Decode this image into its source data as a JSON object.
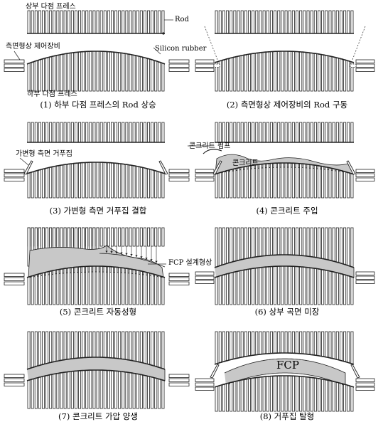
{
  "panels": [
    {
      "caption": "(1) 하부 다점 프레스의 Rod 상승"
    },
    {
      "caption": "(2) 측면형상 제어장비의 Rod 구동"
    },
    {
      "caption": "(3) 가변형 측면 거푸집 결합"
    },
    {
      "caption": "(4) 콘크리트 주입"
    },
    {
      "caption": "(5) 콘크리트 자동성형"
    },
    {
      "caption": "(6) 상부 곡면 미장"
    },
    {
      "caption": "(7) 콘크리트 가압 양생"
    },
    {
      "caption": "(8) 거푸집 탈형"
    }
  ],
  "annotations": {
    "upper_press": "상부 다점 프레스",
    "rod": "Rod",
    "side_control": "측면형상 제어장비",
    "silicon_rubber": "Silicon rubber",
    "lower_press": "하부 다점 프레스",
    "side_form": "가변형 측면 거푸집",
    "pump": "콘크리트 펌프",
    "concrete": "콘크리트",
    "fcp_design": "FCP 설계형상",
    "fcp": "FCP"
  },
  "colors": {
    "concrete": "#c8c8c8",
    "line": "#222222"
  }
}
